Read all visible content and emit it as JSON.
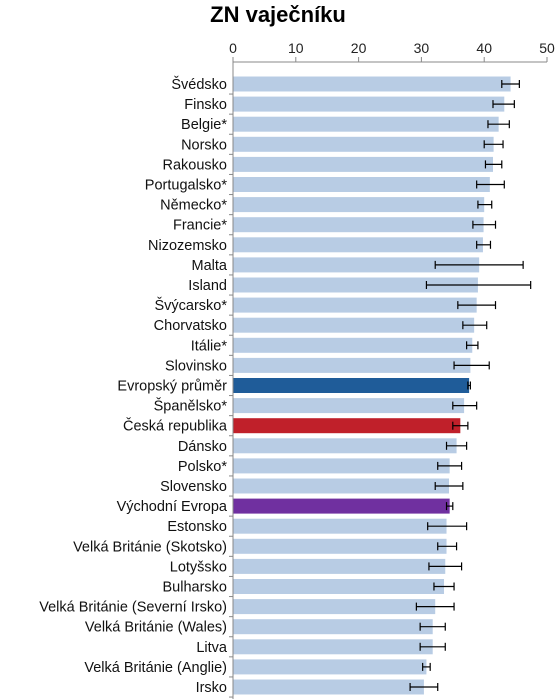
{
  "chart_data": {
    "type": "bar",
    "orientation": "horizontal",
    "title": "ZN vaječníku",
    "xlim": [
      0,
      50
    ],
    "xticks": [
      "0",
      "10",
      "20",
      "30",
      "40",
      "50"
    ],
    "grid": false,
    "legend": "none",
    "colors": {
      "default": "#b8cce4",
      "highlight_europe": "#1f5c99",
      "highlight_cz": "#c0202a",
      "highlight_east": "#7030a0",
      "error_bar": "#000000",
      "axis": "#888888"
    },
    "categories": [
      "Švédsko",
      "Finsko",
      "Belgie*",
      "Norsko",
      "Rakousko",
      "Portugalsko*",
      "Německo*",
      "Francie*",
      "Nizozemsko",
      "Malta",
      "Island",
      "Švýcarsko*",
      "Chorvatsko",
      "Itálie*",
      "Slovinsko",
      "Evropský průměr",
      "Španělsko*",
      "Česká republika",
      "Dánsko",
      "Polsko*",
      "Slovensko",
      "Východní Evropa",
      "Estonsko",
      "Velká Británie (Skotsko)",
      "Lotyšsko",
      "Bulharsko",
      "Velká Británie (Severní Irsko)",
      "Velká Británie (Wales)",
      "Litva",
      "Velká Británie (Anglie)",
      "Irsko"
    ],
    "values": [
      44.2,
      43.2,
      42.3,
      41.5,
      41.4,
      40.9,
      40.0,
      39.9,
      39.8,
      39.2,
      39.0,
      38.8,
      38.4,
      38.1,
      37.8,
      37.6,
      36.8,
      36.2,
      35.6,
      34.5,
      34.4,
      34.5,
      34.0,
      34.0,
      33.8,
      33.6,
      32.2,
      31.8,
      31.8,
      30.8,
      30.4
    ],
    "error_low": [
      42.8,
      41.4,
      40.6,
      40.0,
      40.2,
      38.8,
      39.0,
      38.2,
      38.8,
      32.2,
      30.8,
      35.8,
      36.6,
      37.2,
      35.2,
      37.4,
      35.0,
      35.0,
      34.0,
      32.6,
      32.2,
      34.0,
      31.0,
      32.6,
      31.2,
      32.0,
      29.2,
      29.8,
      29.8,
      30.2,
      28.2
    ],
    "error_high": [
      45.6,
      44.8,
      44.0,
      43.0,
      42.8,
      43.2,
      41.2,
      41.8,
      41.0,
      46.2,
      47.4,
      41.8,
      40.4,
      39.0,
      40.8,
      37.8,
      38.8,
      37.4,
      37.2,
      36.4,
      36.6,
      35.0,
      37.2,
      35.6,
      36.4,
      35.2,
      35.2,
      33.8,
      33.8,
      31.4,
      32.6
    ],
    "highlight": {
      "Evropský průměr": "highlight_europe",
      "Česká republika": "highlight_cz",
      "Východní Evropa": "highlight_east"
    }
  }
}
